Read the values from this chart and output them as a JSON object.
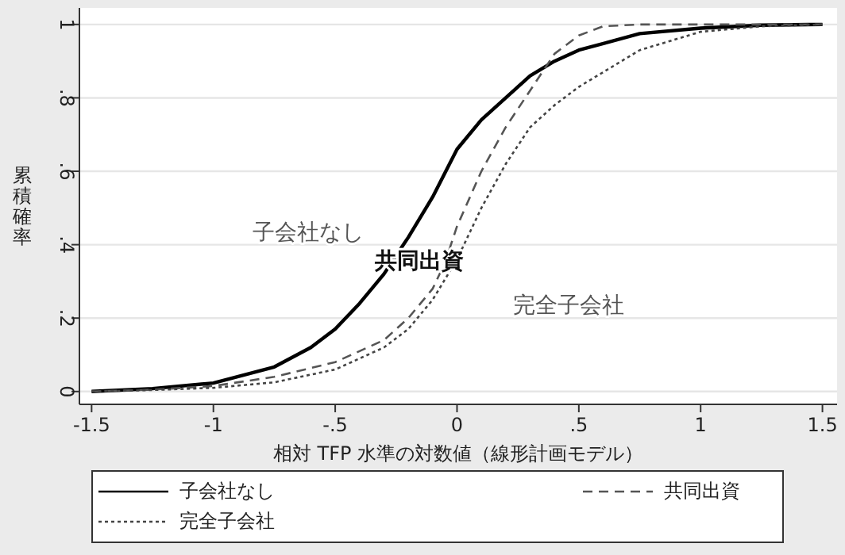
{
  "chart_data": {
    "type": "line",
    "xlabel": "相対 TFP 水準の対数値（線形計画モデル）",
    "ylabel": "累積確率",
    "xlim": [
      -1.55,
      1.56
    ],
    "ylim": [
      -0.035,
      1.045
    ],
    "xticks": [
      {
        "value": -1.5,
        "label": "-1.5"
      },
      {
        "value": -1,
        "label": "-1"
      },
      {
        "value": -0.5,
        "label": "-.5"
      },
      0,
      {
        "value": 0.5,
        "label": ".5"
      },
      1,
      {
        "value": 1.5,
        "label": "1.5"
      }
    ],
    "yticks": [
      0,
      {
        "value": 0.2,
        "label": ".2"
      },
      {
        "value": 0.4,
        "label": ".4"
      },
      {
        "value": 0.6,
        "label": ".6"
      },
      {
        "value": 0.8,
        "label": ".8"
      },
      1
    ],
    "grid": "y",
    "legend": "bottom",
    "series": [
      {
        "name": "子会社なし",
        "color": "#000000",
        "line_style": "solid",
        "x": [
          -1.5,
          -1.25,
          -1,
          -0.75,
          -0.6,
          -0.5,
          -0.4,
          -0.3,
          -0.2,
          -0.1,
          0,
          0.1,
          0.2,
          0.3,
          0.4,
          0.5,
          0.75,
          1,
          1.25,
          1.5
        ],
        "values": [
          0,
          0.008,
          0.023,
          0.067,
          0.12,
          0.17,
          0.24,
          0.32,
          0.42,
          0.53,
          0.66,
          0.74,
          0.8,
          0.86,
          0.9,
          0.93,
          0.975,
          0.99,
          0.998,
          1
        ]
      },
      {
        "name": "共同出資",
        "color": "#555555",
        "line_style": "dashed",
        "x": [
          -1.5,
          -1.25,
          -1,
          -0.75,
          -0.5,
          -0.4,
          -0.3,
          -0.2,
          -0.1,
          -0.05,
          0,
          0.1,
          0.2,
          0.3,
          0.4,
          0.5,
          0.6,
          0.75,
          1,
          1.5
        ],
        "values": [
          0,
          0.005,
          0.015,
          0.04,
          0.08,
          0.11,
          0.14,
          0.2,
          0.28,
          0.35,
          0.45,
          0.6,
          0.72,
          0.82,
          0.92,
          0.97,
          0.995,
          1,
          1,
          1
        ]
      },
      {
        "name": "完全子会社",
        "color": "#444444",
        "line_style": "dotted",
        "x": [
          -1.5,
          -1.25,
          -1,
          -0.75,
          -0.5,
          -0.3,
          -0.2,
          -0.1,
          0,
          0.1,
          0.2,
          0.3,
          0.4,
          0.5,
          0.6,
          0.75,
          1,
          1.25,
          1.5
        ],
        "values": [
          0,
          0.004,
          0.01,
          0.025,
          0.06,
          0.12,
          0.17,
          0.25,
          0.36,
          0.5,
          0.62,
          0.72,
          0.78,
          0.83,
          0.87,
          0.93,
          0.98,
          0.995,
          1
        ]
      }
    ],
    "annotations": [
      "子会社なし",
      "共同出資",
      "完全子会社"
    ]
  }
}
